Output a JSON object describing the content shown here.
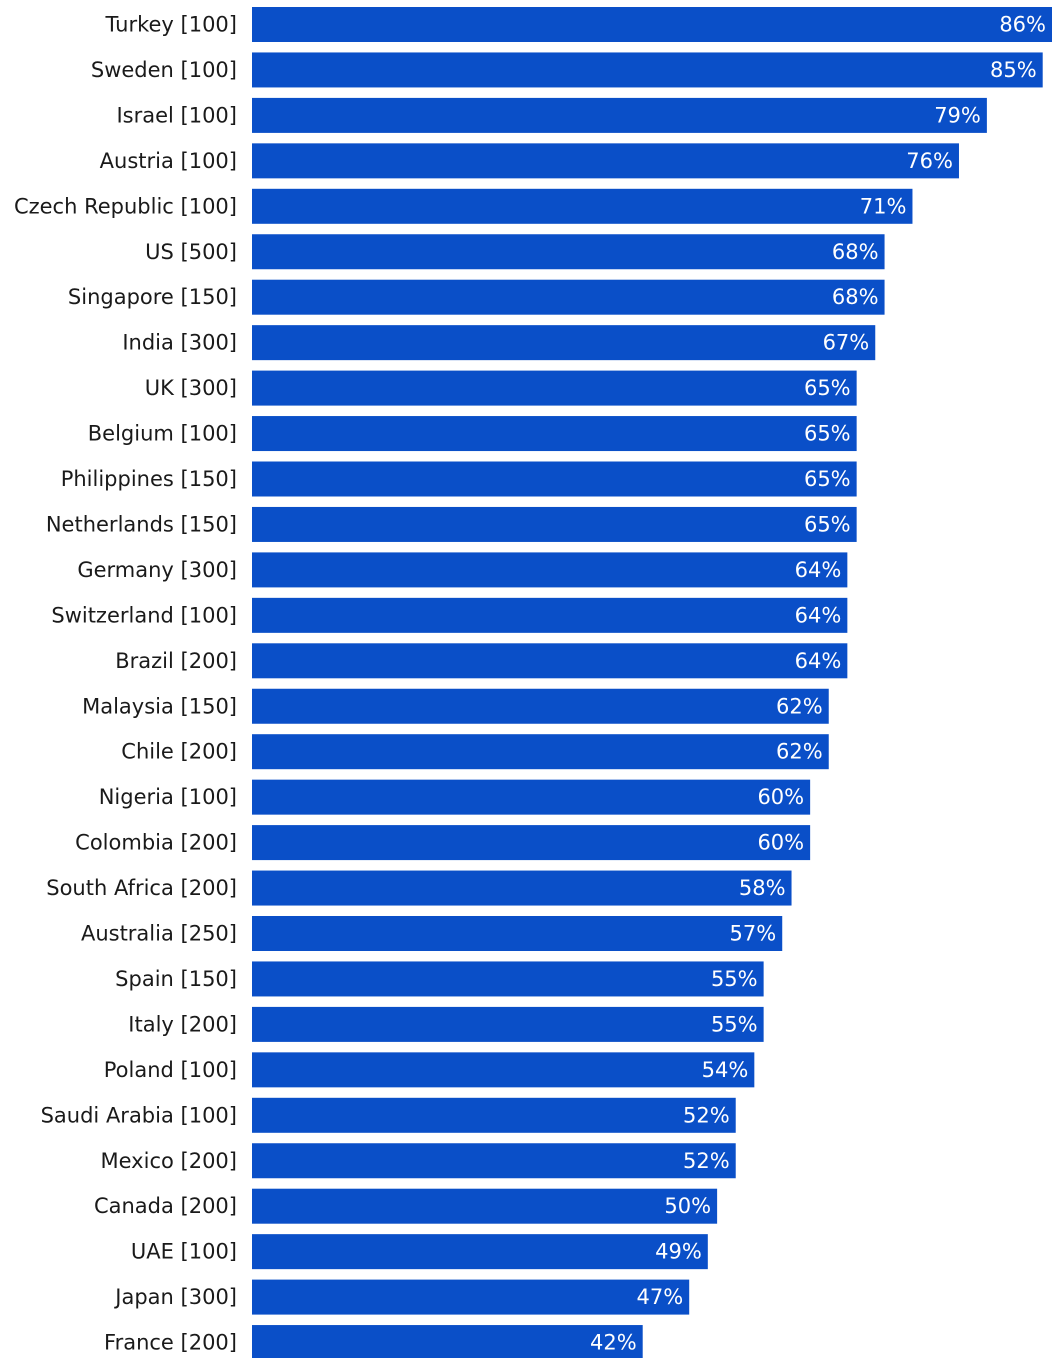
{
  "chart_data": {
    "type": "bar",
    "orientation": "horizontal",
    "title": "",
    "xlabel": "",
    "ylabel": "",
    "xlim": [
      0,
      86
    ],
    "grid": false,
    "legend": "none",
    "bar_color": "#0a4fc8",
    "value_suffix": "%",
    "categories": [
      "Turkey [100]",
      "Sweden [100]",
      "Israel [100]",
      "Austria [100]",
      "Czech Republic [100]",
      "US [500]",
      "Singapore [150]",
      "India [300]",
      "UK [300]",
      "Belgium [100]",
      "Philippines [150]",
      "Netherlands [150]",
      "Germany [300]",
      "Switzerland [100]",
      "Brazil [200]",
      "Malaysia [150]",
      "Chile [200]",
      "Nigeria [100]",
      "Colombia [200]",
      "South Africa [200]",
      "Australia [250]",
      "Spain [150]",
      "Italy [200]",
      "Poland [100]",
      "Saudi Arabia [100]",
      "Mexico  [200]",
      "Canada  [200]",
      "UAE  [100]",
      "Japan  [300]",
      "France [200]"
    ],
    "values": [
      86,
      85,
      79,
      76,
      71,
      68,
      68,
      67,
      65,
      65,
      65,
      65,
      64,
      64,
      64,
      62,
      62,
      60,
      60,
      58,
      57,
      55,
      55,
      54,
      52,
      52,
      50,
      49,
      47,
      42
    ]
  }
}
